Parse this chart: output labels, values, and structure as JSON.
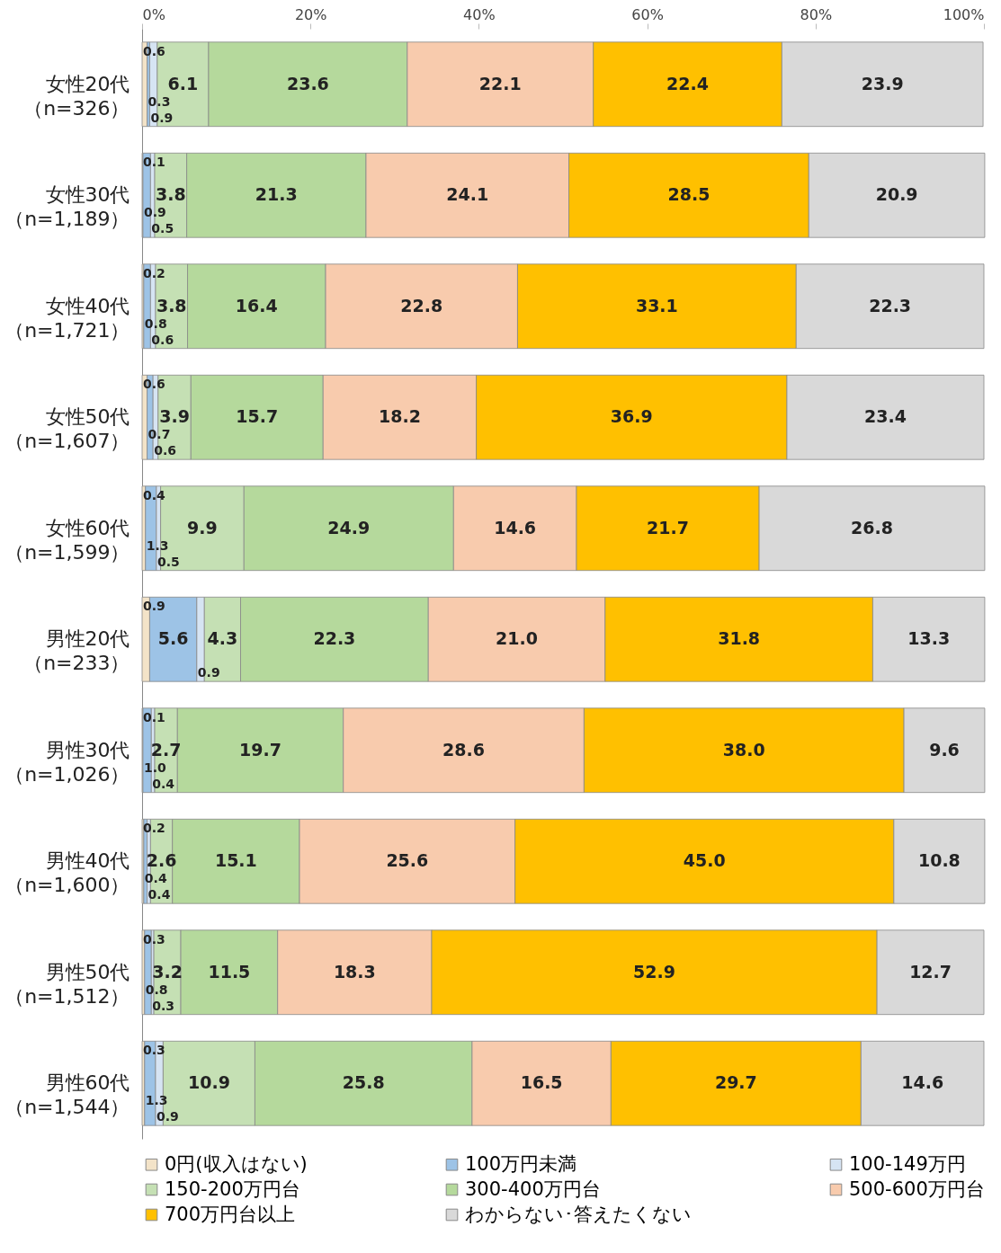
{
  "chart_data": {
    "type": "bar",
    "orientation": "horizontal",
    "stacked": true,
    "legend": "bottom",
    "grid": false,
    "categories": [
      "女性20代（n=326）",
      "女性30代（n=1,189）",
      "女性40代（n=1,721）",
      "女性50代（n=1,607）",
      "女性60代（n=1,599）",
      "男性20代（n=233）",
      "男性30代（n=1,026）",
      "男性40代（n=1,600）",
      "男性50代（n=1,512）",
      "男性60代（n=1,544）"
    ],
    "xlim": [
      0,
      100
    ],
    "xticks": [
      {
        "value": 0,
        "label": "0%"
      },
      {
        "value": 20,
        "label": "20%"
      },
      {
        "value": 40,
        "label": "40%"
      },
      {
        "value": 60,
        "label": "60%"
      },
      {
        "value": 80,
        "label": "80%"
      },
      {
        "value": 100,
        "label": "100%"
      }
    ],
    "series": [
      {
        "name": "0円(収入はない)",
        "color": "#f3e3c8",
        "values": [
          0.6,
          0.1,
          0.2,
          0.6,
          0.4,
          0.9,
          0.1,
          0.2,
          0.3,
          0.3
        ],
        "value_labels": [
          "0.6",
          "0.1",
          "0.2",
          "0.6",
          "0.4",
          "0.9",
          "0.1",
          "0.2",
          "0.3",
          "0.3"
        ]
      },
      {
        "name": "100万円未満",
        "color": "#9dc3e6",
        "values": [
          0.3,
          0.9,
          0.8,
          0.7,
          1.3,
          5.6,
          1.0,
          0.4,
          0.8,
          1.3
        ],
        "value_labels": [
          "0.3",
          "0.9",
          "0.8",
          "0.7",
          "1.3",
          "5.6",
          "1.0",
          "0.4",
          "0.8",
          "1.3"
        ]
      },
      {
        "name": "100-149万円",
        "color": "#d6e4f3",
        "values": [
          0.9,
          0.5,
          0.6,
          0.6,
          0.5,
          0.9,
          0.4,
          0.4,
          0.3,
          0.9
        ],
        "value_labels": [
          "0.9",
          "0.5",
          "0.6",
          "0.6",
          "0.5",
          "0.9",
          "0.4",
          "0.4",
          "0.3",
          "0.9"
        ]
      },
      {
        "name": "150-200万円台",
        "color": "#c5e0b4",
        "values": [
          6.1,
          3.8,
          3.8,
          3.9,
          9.9,
          4.3,
          2.7,
          2.6,
          3.2,
          10.9
        ],
        "value_labels": [
          "6.1",
          "3.8",
          "3.8",
          "3.9",
          "9.9",
          "4.3",
          "2.7",
          "2.6",
          "3.2",
          "10.9"
        ]
      },
      {
        "name": "300-400万円台",
        "color": "#b5d99c",
        "values": [
          23.6,
          21.3,
          16.4,
          15.7,
          24.9,
          22.3,
          19.7,
          15.1,
          11.5,
          25.8
        ],
        "value_labels": [
          "23.6",
          "21.3",
          "16.4",
          "15.7",
          "24.9",
          "22.3",
          "19.7",
          "15.1",
          "11.5",
          "25.8"
        ]
      },
      {
        "name": "500-600万円台",
        "color": "#f8cbad",
        "values": [
          22.1,
          24.1,
          22.8,
          18.2,
          14.6,
          21.0,
          28.6,
          25.6,
          18.3,
          16.5
        ],
        "value_labels": [
          "22.1",
          "24.1",
          "22.8",
          "18.2",
          "14.6",
          "21.0",
          "28.6",
          "25.6",
          "18.3",
          "16.5"
        ]
      },
      {
        "name": "700万円台以上",
        "color": "#ffc000",
        "values": [
          22.4,
          28.5,
          33.1,
          36.9,
          21.7,
          31.8,
          38.0,
          45.0,
          52.9,
          29.7
        ],
        "value_labels": [
          "22.4",
          "28.5",
          "33.1",
          "36.9",
          "21.7",
          "31.8",
          "38.0",
          "45.0",
          "52.9",
          "29.7"
        ]
      },
      {
        "name": "わからない･答えたくない",
        "color": "#d9d9d9",
        "values": [
          23.9,
          20.9,
          22.3,
          23.4,
          26.8,
          13.3,
          9.6,
          10.8,
          12.7,
          14.6
        ],
        "value_labels": [
          "23.9",
          "20.9",
          "22.3",
          "23.4",
          "26.8",
          "13.3",
          "9.6",
          "10.8",
          "12.7",
          "14.6"
        ]
      }
    ]
  }
}
